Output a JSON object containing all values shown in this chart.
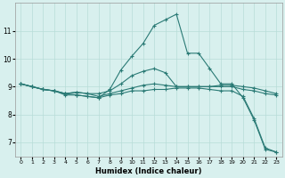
{
  "xlabel": "Humidex (Indice chaleur)",
  "background_color": "#d8f0ee",
  "line_color": "#2a7a75",
  "grid_color": "#b8dcd8",
  "xlim": [
    -0.5,
    23.5
  ],
  "ylim": [
    6.5,
    12.0
  ],
  "yticks": [
    7,
    8,
    9,
    10,
    11
  ],
  "xticks": [
    0,
    1,
    2,
    3,
    4,
    5,
    6,
    7,
    8,
    9,
    10,
    11,
    12,
    13,
    14,
    15,
    16,
    17,
    18,
    19,
    20,
    21,
    22,
    23
  ],
  "series": [
    [
      9.1,
      9.0,
      8.9,
      8.85,
      8.7,
      8.7,
      8.65,
      8.6,
      8.9,
      9.6,
      10.1,
      10.55,
      11.2,
      11.4,
      11.6,
      10.2,
      10.2,
      9.65,
      9.1,
      9.1,
      8.6,
      7.8,
      6.75,
      6.65
    ],
    [
      9.1,
      9.0,
      8.9,
      8.85,
      8.75,
      8.8,
      8.75,
      8.75,
      8.85,
      9.1,
      9.4,
      9.55,
      9.65,
      9.5,
      9.0,
      9.0,
      9.0,
      9.0,
      9.05,
      9.05,
      9.0,
      8.95,
      8.85,
      8.75
    ],
    [
      9.1,
      9.0,
      8.9,
      8.85,
      8.75,
      8.8,
      8.75,
      8.65,
      8.75,
      8.85,
      8.95,
      9.05,
      9.1,
      9.05,
      9.0,
      9.0,
      9.0,
      9.0,
      9.0,
      9.0,
      8.9,
      8.85,
      8.75,
      8.7
    ],
    [
      9.1,
      9.0,
      8.9,
      8.85,
      8.75,
      8.7,
      8.65,
      8.6,
      8.7,
      8.75,
      8.85,
      8.85,
      8.9,
      8.9,
      8.95,
      8.95,
      8.95,
      8.9,
      8.85,
      8.85,
      8.65,
      7.85,
      6.8,
      6.65
    ]
  ]
}
